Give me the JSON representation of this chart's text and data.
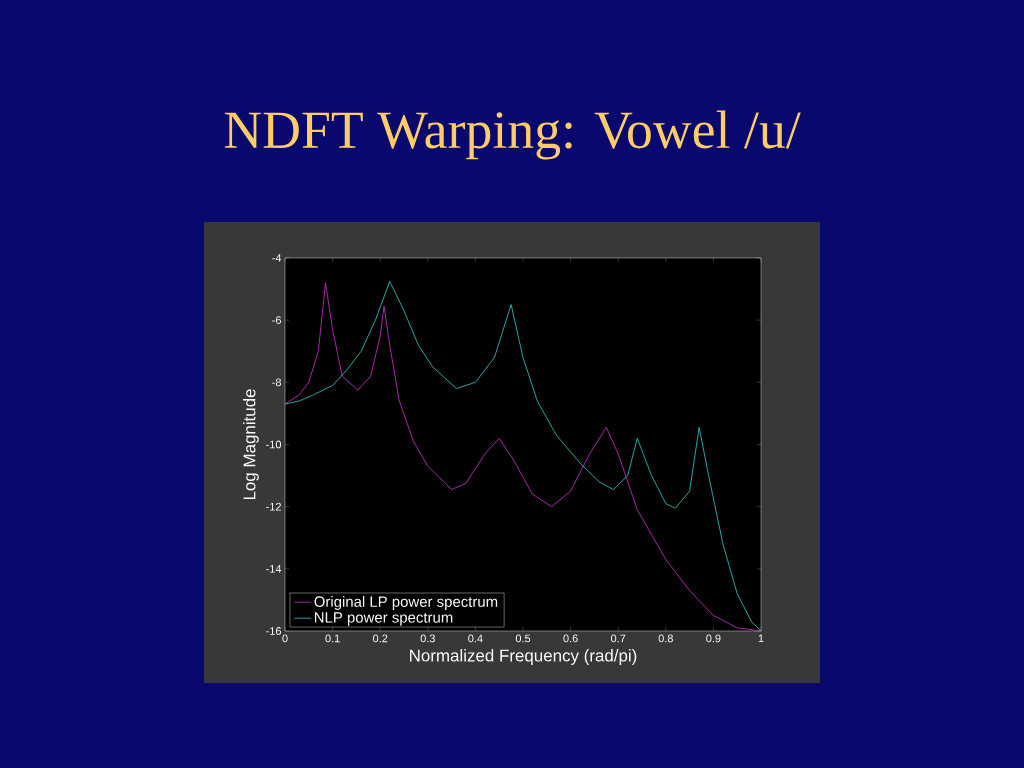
{
  "chart_data": {
    "type": "line",
    "title": "NDFT Warping: Vowel /u/",
    "xlabel": "Normalized Frequency (rad/pi)",
    "ylabel": "Log Magnitude",
    "xlim": [
      0,
      1
    ],
    "ylim": [
      -16,
      -4
    ],
    "xticks": [
      0,
      0.1,
      0.2,
      0.3,
      0.4,
      0.5,
      0.6,
      0.7,
      0.8,
      0.9,
      1
    ],
    "yticks": [
      -16,
      -14,
      -12,
      -10,
      -8,
      -6,
      -4
    ],
    "grid": false,
    "legend": "bottom left",
    "marker": "none",
    "line_style": "solid",
    "series": [
      {
        "name": "Original LP power spectrum",
        "color": "#cc33cc",
        "x": [
          0,
          0.03,
          0.05,
          0.07,
          0.085,
          0.1,
          0.12,
          0.153,
          0.18,
          0.2,
          0.208,
          0.22,
          0.24,
          0.27,
          0.3,
          0.35,
          0.38,
          0.42,
          0.45,
          0.48,
          0.52,
          0.56,
          0.6,
          0.64,
          0.675,
          0.7,
          0.74,
          0.8,
          0.85,
          0.9,
          0.95,
          1
        ],
        "values": [
          -8.7,
          -8.4,
          -8.0,
          -7.0,
          -4.8,
          -6.3,
          -7.8,
          -8.25,
          -7.8,
          -6.5,
          -5.55,
          -6.8,
          -8.6,
          -9.9,
          -10.7,
          -11.45,
          -11.25,
          -10.3,
          -9.8,
          -10.5,
          -11.6,
          -12.0,
          -11.5,
          -10.3,
          -9.45,
          -10.3,
          -12.1,
          -13.7,
          -14.7,
          -15.5,
          -15.9,
          -16
        ]
      },
      {
        "name": "NLP power spectrum",
        "color": "#33cccc",
        "x": [
          0,
          0.03,
          0.06,
          0.1,
          0.13,
          0.16,
          0.19,
          0.22,
          0.25,
          0.28,
          0.31,
          0.36,
          0.4,
          0.44,
          0.475,
          0.5,
          0.53,
          0.57,
          0.62,
          0.66,
          0.69,
          0.72,
          0.74,
          0.77,
          0.8,
          0.82,
          0.85,
          0.87,
          0.89,
          0.92,
          0.95,
          0.98,
          1
        ],
        "values": [
          -8.7,
          -8.6,
          -8.4,
          -8.1,
          -7.6,
          -7.0,
          -6.0,
          -4.75,
          -5.7,
          -6.8,
          -7.5,
          -8.2,
          -8.0,
          -7.2,
          -5.5,
          -7.2,
          -8.6,
          -9.7,
          -10.6,
          -11.2,
          -11.45,
          -11.0,
          -9.8,
          -11.0,
          -11.9,
          -12.05,
          -11.5,
          -9.45,
          -11.0,
          -13.2,
          -14.8,
          -15.7,
          -16
        ]
      }
    ]
  }
}
